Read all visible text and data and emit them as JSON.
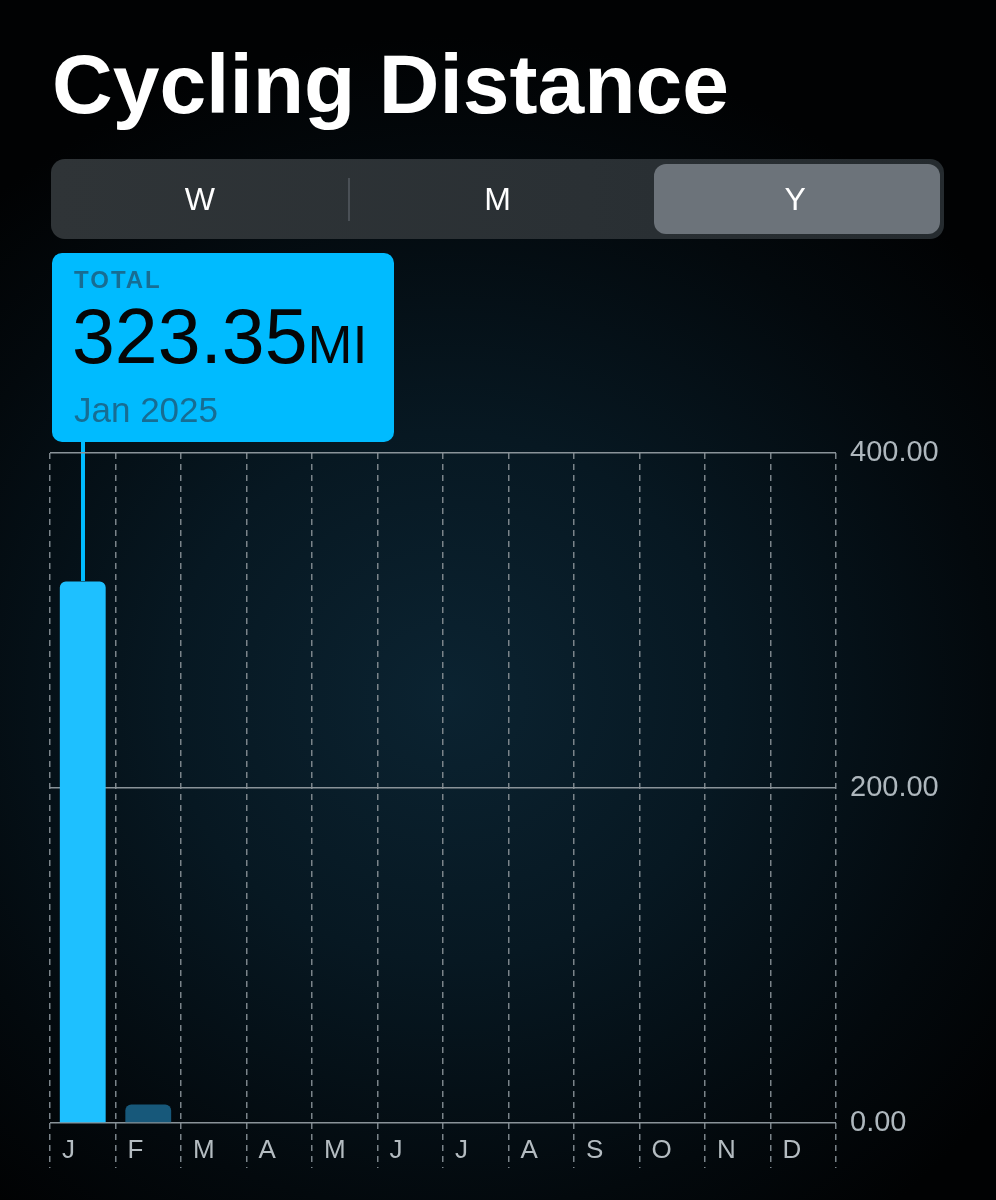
{
  "chart_data": {
    "type": "bar",
    "title": "Cycling Distance",
    "categories": [
      "J",
      "F",
      "M",
      "A",
      "M",
      "J",
      "J",
      "A",
      "S",
      "O",
      "N",
      "D"
    ],
    "values": [
      323.35,
      11,
      null,
      null,
      null,
      null,
      null,
      null,
      null,
      null,
      null,
      null
    ],
    "colors": [
      "#1ec0ff",
      "#17587a",
      "#17587a",
      "#17587a",
      "#17587a",
      "#17587a",
      "#17587a",
      "#17587a",
      "#17587a",
      "#17587a",
      "#17587a",
      "#17587a"
    ],
    "ylim": [
      0,
      400
    ],
    "yticks": [
      {
        "value": 0,
        "label": "0.00"
      },
      {
        "value": 200,
        "label": "200.00"
      },
      {
        "value": 400,
        "label": "400.00"
      }
    ],
    "grid": true,
    "annotations": [
      "W",
      "M",
      "Y",
      "TOTAL",
      {
        "text": "323.35MI",
        "x": "J",
        "y": 323.35
      },
      "Jan 2025"
    ]
  }
}
